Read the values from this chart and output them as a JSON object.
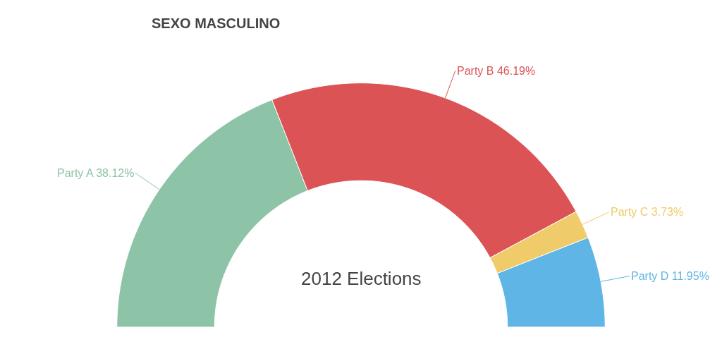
{
  "chart_data": {
    "type": "donut",
    "title": "SEXO MASCULINO",
    "annotations": [
      "2012 Elections"
    ],
    "categories": [
      "Party A",
      "Party B",
      "Party C",
      "Party D"
    ],
    "values": [
      38.12,
      46.19,
      3.73,
      11.95
    ],
    "value_labels": [
      "38.12%",
      "46.19%",
      "3.73%",
      "11.95%"
    ],
    "colors": [
      "#8dc3a7",
      "#dc5356",
      "#f0cb69",
      "#5fb5e5"
    ],
    "legend": false
  }
}
